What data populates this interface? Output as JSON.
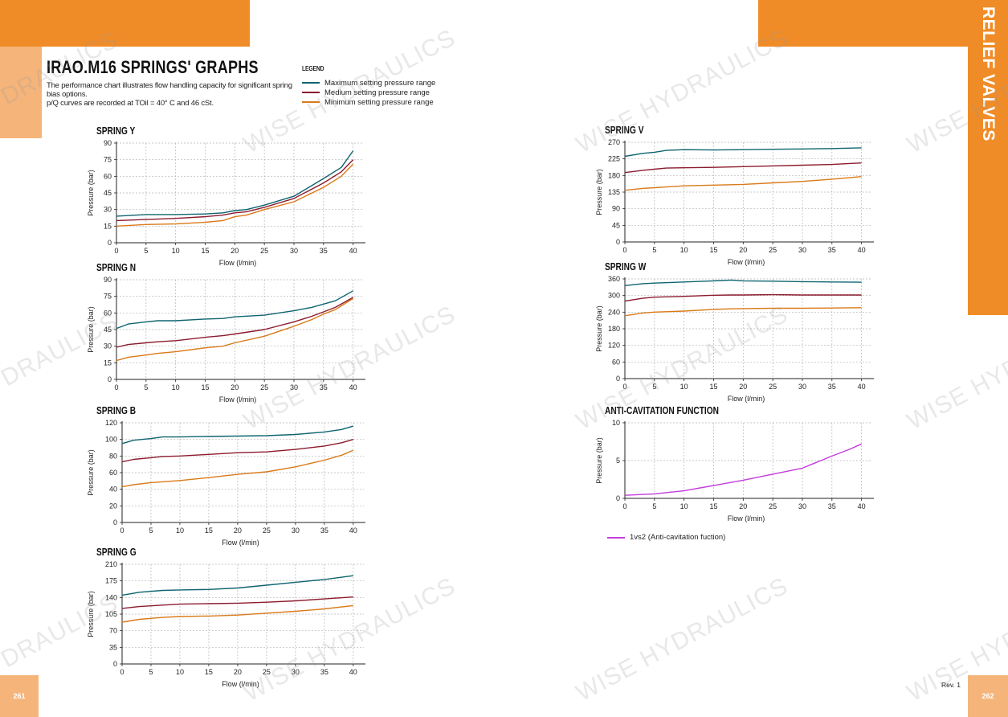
{
  "page": {
    "title": "IRAO.M16 SPRINGS' GRAPHS",
    "intro_lines": [
      "The performance chart illustrates flow handling capacity for significant spring",
      "bias options.",
      "p/Q curves are recorded at TOil = 40° C and 46 cSt."
    ],
    "side_tab": "RELIEF VALVES",
    "page_left": "261",
    "page_right": "262",
    "revision": "Rev. 1",
    "watermark": "WISE HYDRAULICS",
    "watermark_cut": "DRAULICS"
  },
  "legend": {
    "title": "LEGEND",
    "items": [
      {
        "label": "Maximum setting pressure range",
        "color": "#0e6470"
      },
      {
        "label": "Medium setting pressure range",
        "color": "#8c1b2e"
      },
      {
        "label": "Minimum setting pressure range",
        "color": "#d97a1a"
      }
    ]
  },
  "colors": {
    "accent": "#f08c28",
    "accent_light": "#f5b57a",
    "max": "#0e6470",
    "med": "#8c1b2e",
    "min": "#d97a1a",
    "anti": "#c23cdc"
  },
  "chart_data": [
    {
      "id": "y",
      "type": "line",
      "title": "SPRING Y",
      "xlabel": "Flow (l/min)",
      "ylabel": "Pressure (bar)",
      "xlim": [
        0,
        41
      ],
      "ylim": [
        0,
        90
      ],
      "xticks": [
        0,
        5,
        10,
        15,
        20,
        25,
        30,
        35,
        40
      ],
      "yticks": [
        0,
        15,
        30,
        45,
        60,
        75,
        90
      ],
      "grid": true,
      "x": [
        0,
        5,
        10,
        15,
        18,
        20,
        22,
        25,
        30,
        35,
        38,
        40
      ],
      "series": [
        {
          "name": "Maximum setting pressure range",
          "values": [
            24,
            25.5,
            25.5,
            26,
            27,
            29,
            30,
            34,
            42,
            58,
            68,
            83
          ]
        },
        {
          "name": "Medium setting pressure range",
          "values": [
            20,
            21,
            22,
            23.5,
            25,
            27,
            28,
            32,
            40,
            54,
            64,
            75
          ]
        },
        {
          "name": "Minimum setting pressure range",
          "values": [
            15,
            16.5,
            17,
            18.5,
            20,
            23.5,
            25,
            30,
            37,
            50,
            60,
            71
          ]
        }
      ]
    },
    {
      "id": "n",
      "type": "line",
      "title": "SPRING N",
      "xlabel": "Flow (l/min)",
      "ylabel": "Pressure (bar)",
      "xlim": [
        0,
        41
      ],
      "ylim": [
        0,
        90
      ],
      "xticks": [
        0,
        5,
        10,
        15,
        20,
        25,
        30,
        35,
        40
      ],
      "yticks": [
        0,
        15,
        30,
        45,
        60,
        75,
        90
      ],
      "grid": true,
      "x": [
        0,
        2,
        5,
        7,
        10,
        15,
        18,
        20,
        25,
        30,
        33,
        35,
        37,
        40
      ],
      "series": [
        {
          "name": "Maximum setting pressure range",
          "values": [
            46,
            50,
            52,
            53,
            53,
            54.5,
            55,
            56.5,
            58,
            62,
            65,
            68,
            71,
            80
          ]
        },
        {
          "name": "Medium setting pressure range",
          "values": [
            29,
            31.5,
            33,
            34,
            35,
            38,
            39.5,
            41,
            45,
            52,
            57,
            61,
            65,
            74
          ]
        },
        {
          "name": "Minimum setting pressure range",
          "values": [
            17,
            20,
            22,
            23.5,
            25,
            28.5,
            30,
            33,
            39,
            48,
            54,
            59,
            63,
            73
          ]
        }
      ]
    },
    {
      "id": "b",
      "type": "line",
      "title": "SPRING B",
      "xlabel": "Flow (l/min)",
      "ylabel": "Pressure (bar)",
      "xlim": [
        0,
        41
      ],
      "ylim": [
        0,
        120
      ],
      "xticks": [
        0,
        5,
        10,
        15,
        20,
        25,
        30,
        35,
        40
      ],
      "yticks": [
        0,
        20,
        40,
        60,
        80,
        100,
        120
      ],
      "grid": true,
      "x": [
        0,
        2,
        5,
        7,
        10,
        15,
        20,
        25,
        30,
        35,
        38,
        40
      ],
      "series": [
        {
          "name": "Maximum setting pressure range",
          "values": [
            95,
            99,
            101,
            103,
            103,
            103.5,
            104,
            104.5,
            106,
            109,
            112,
            116
          ]
        },
        {
          "name": "Medium setting pressure range",
          "values": [
            73,
            76,
            78,
            79.5,
            80,
            82,
            84,
            85,
            88,
            92,
            96,
            100
          ]
        },
        {
          "name": "Minimum setting pressure range",
          "values": [
            43,
            45.5,
            48,
            49,
            50.5,
            54,
            58,
            61,
            67,
            75,
            81,
            87
          ]
        }
      ]
    },
    {
      "id": "g",
      "type": "line",
      "title": "SPRING G",
      "xlabel": "Flow (l/min)",
      "ylabel": "Pressure (bar)",
      "xlim": [
        0,
        41
      ],
      "ylim": [
        0,
        210
      ],
      "xticks": [
        0,
        5,
        10,
        15,
        20,
        25,
        30,
        35,
        40
      ],
      "yticks": [
        0,
        35,
        70,
        105,
        140,
        175,
        210
      ],
      "grid": true,
      "x": [
        0,
        3,
        7,
        10,
        15,
        20,
        25,
        30,
        35,
        40
      ],
      "series": [
        {
          "name": "Maximum setting pressure range",
          "values": [
            145,
            151,
            155,
            156,
            157,
            160,
            166,
            172,
            178,
            186
          ]
        },
        {
          "name": "Medium setting pressure range",
          "values": [
            117,
            121,
            124,
            126,
            127,
            128,
            130,
            133,
            137,
            141
          ]
        },
        {
          "name": "Minimum setting pressure range",
          "values": [
            88,
            94,
            98,
            100,
            101,
            103,
            107,
            111,
            116,
            123
          ]
        }
      ]
    },
    {
      "id": "v",
      "type": "line",
      "title": "SPRING V",
      "xlabel": "Flow (l/min)",
      "ylabel": "Pressure (bar)",
      "xlim": [
        0,
        41
      ],
      "ylim": [
        0,
        270
      ],
      "xticks": [
        0,
        5,
        10,
        15,
        20,
        25,
        30,
        35,
        40
      ],
      "yticks": [
        0,
        45,
        90,
        135,
        180,
        225,
        270
      ],
      "grid": true,
      "x": [
        0,
        3,
        5,
        7,
        10,
        15,
        20,
        25,
        30,
        35,
        40
      ],
      "series": [
        {
          "name": "Maximum setting pressure range",
          "values": [
            232,
            240,
            243,
            248,
            250,
            249,
            250,
            251,
            252,
            253,
            255
          ]
        },
        {
          "name": "Medium setting pressure range",
          "values": [
            188,
            194,
            197,
            200,
            201,
            202,
            204,
            206,
            208,
            210,
            214
          ]
        },
        {
          "name": "Minimum setting pressure range",
          "values": [
            140,
            145,
            147,
            149,
            152,
            154,
            156,
            160,
            164,
            170,
            177
          ]
        }
      ]
    },
    {
      "id": "w",
      "type": "line",
      "title": "SPRING W",
      "xlabel": "Flow (l/min)",
      "ylabel": "Pressure (bar)",
      "xlim": [
        0,
        41
      ],
      "ylim": [
        0,
        360
      ],
      "xticks": [
        0,
        5,
        10,
        15,
        20,
        25,
        30,
        35,
        40
      ],
      "yticks": [
        0,
        60,
        120,
        180,
        240,
        300,
        360
      ],
      "grid": true,
      "x": [
        0,
        3,
        5,
        10,
        15,
        18,
        20,
        25,
        30,
        35,
        40
      ],
      "series": [
        {
          "name": "Maximum setting pressure range",
          "values": [
            336,
            343,
            345,
            349,
            353,
            356,
            353,
            352,
            350,
            349,
            348
          ]
        },
        {
          "name": "Medium setting pressure range",
          "values": [
            280,
            290,
            294,
            297,
            301,
            302,
            302,
            303,
            302,
            302,
            302
          ]
        },
        {
          "name": "Minimum setting pressure range",
          "values": [
            227,
            237,
            240,
            244,
            250,
            252,
            253,
            254,
            254,
            255,
            256
          ]
        }
      ]
    },
    {
      "id": "anti",
      "type": "line",
      "title": "ANTI-CAVITATION FUNCTION",
      "xlabel": "Flow (l/min)",
      "ylabel": "Pressure (bar)",
      "xlim": [
        0,
        41
      ],
      "ylim": [
        0,
        10
      ],
      "xticks": [
        0,
        5,
        10,
        15,
        20,
        25,
        30,
        35,
        40
      ],
      "yticks": [
        0,
        5,
        10
      ],
      "grid": true,
      "legend": "1vs2 (Anti-cavitation fuction)",
      "x": [
        0,
        5,
        10,
        15,
        20,
        25,
        30,
        35,
        38,
        40
      ],
      "series": [
        {
          "name": "1vs2 (Anti-cavitation fuction)",
          "values": [
            0.4,
            0.6,
            1.0,
            1.7,
            2.4,
            3.2,
            4.0,
            5.6,
            6.5,
            7.2
          ]
        }
      ]
    }
  ]
}
